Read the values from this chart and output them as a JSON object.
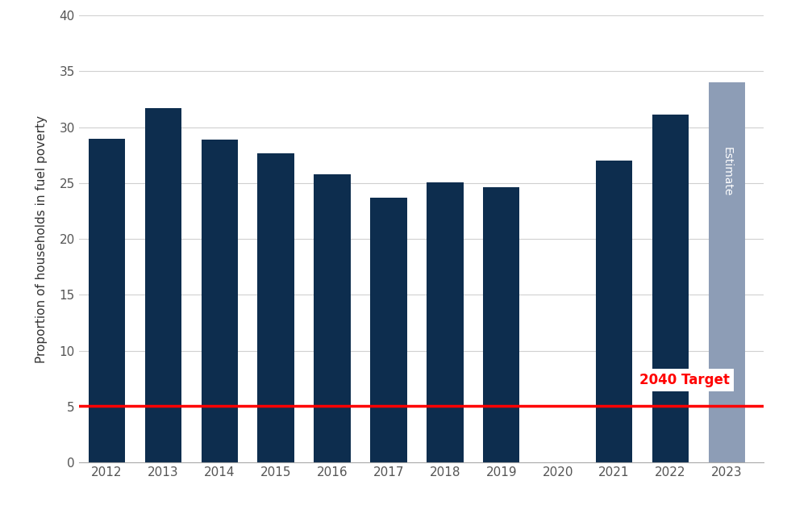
{
  "years": [
    2012,
    2013,
    2014,
    2015,
    2016,
    2017,
    2018,
    2019,
    2020,
    2021,
    2022,
    2023
  ],
  "values": [
    29.0,
    31.7,
    28.9,
    27.7,
    25.8,
    23.7,
    25.1,
    24.6,
    null,
    27.0,
    31.1,
    34.0
  ],
  "bar_color_dark": "#0d2d4e",
  "bar_color_estimate": "#8d9db6",
  "target_line_y": 5.1,
  "target_line_color": "#ff0000",
  "target_label": "2040 Target",
  "ylabel": "Proportion of households in fuel poverty",
  "ylim": [
    0,
    40
  ],
  "yticks": [
    0,
    5,
    10,
    15,
    20,
    25,
    30,
    35,
    40
  ],
  "estimate_label": "Estimate",
  "estimate_year": 2023,
  "background_color": "#ffffff",
  "grid_color": "#d0d0d0",
  "bar_width": 0.65
}
